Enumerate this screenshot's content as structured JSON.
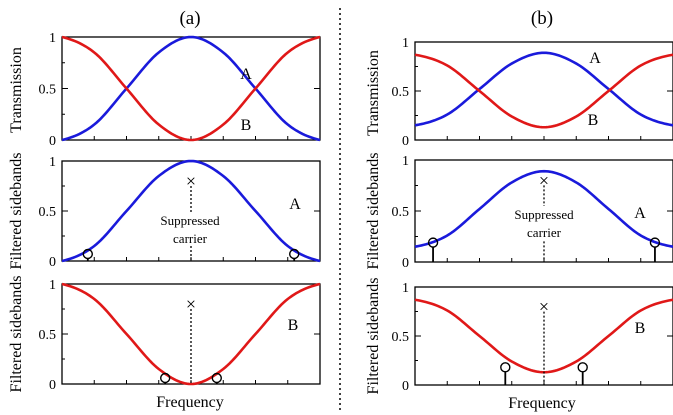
{
  "colors": {
    "blue": "#1a1adb",
    "red": "#e01818",
    "axis": "#000000",
    "marker": "#000000"
  },
  "panel_labels": [
    "(a)",
    "(b)"
  ],
  "layout_note": "Two columns of three stacked subplots, separated by a dotted vertical divider.",
  "chart_data": [
    {
      "id": "a-top",
      "type": "line",
      "panel": "(a)",
      "ylabel": "Transmission",
      "ylim": [
        0,
        1
      ],
      "yticks": [
        "1",
        "0.5",
        "0"
      ],
      "xlim": [
        0,
        1
      ],
      "x": [
        0,
        0.125,
        0.25,
        0.375,
        0.5,
        0.625,
        0.75,
        0.875,
        1
      ],
      "series": [
        {
          "name": "A",
          "color": "#1a1adb",
          "y": [
            0.0,
            0.15,
            0.5,
            0.85,
            1.0,
            0.85,
            0.5,
            0.15,
            0.0
          ]
        },
        {
          "name": "B",
          "color": "#e01818",
          "y": [
            1.0,
            0.85,
            0.5,
            0.15,
            0.0,
            0.15,
            0.5,
            0.85,
            1.0
          ]
        }
      ]
    },
    {
      "id": "a-mid",
      "type": "line",
      "panel": "(a)",
      "ylabel": "Filtered sidebands",
      "ylim": [
        0,
        1
      ],
      "yticks": [
        "1",
        "0.5",
        "0"
      ],
      "xlim": [
        0,
        1
      ],
      "x": [
        0,
        0.125,
        0.25,
        0.375,
        0.5,
        0.625,
        0.75,
        0.875,
        1
      ],
      "series": [
        {
          "name": "A",
          "color": "#1a1adb",
          "y": [
            0.0,
            0.15,
            0.5,
            0.85,
            1.0,
            0.85,
            0.5,
            0.15,
            0.0
          ]
        }
      ],
      "carrier": {
        "x": 0.5,
        "y": 0.8,
        "label": "Suppressed carrier"
      },
      "sidebands": [
        {
          "x": 0.1,
          "y": 0.07
        },
        {
          "x": 0.9,
          "y": 0.07
        }
      ]
    },
    {
      "id": "a-bot",
      "type": "line",
      "panel": "(a)",
      "ylabel": "Filtered sidebands",
      "ylim": [
        0,
        1
      ],
      "yticks": [
        "1",
        "0.5",
        "0"
      ],
      "xlim": [
        0,
        1
      ],
      "xlabel": "Frequency",
      "x": [
        0,
        0.125,
        0.25,
        0.375,
        0.5,
        0.625,
        0.75,
        0.875,
        1
      ],
      "series": [
        {
          "name": "B",
          "color": "#e01818",
          "y": [
            1.0,
            0.85,
            0.5,
            0.15,
            0.0,
            0.15,
            0.5,
            0.85,
            1.0
          ]
        }
      ],
      "carrier": {
        "x": 0.5,
        "y": 0.8
      },
      "sidebands": [
        {
          "x": 0.4,
          "y": 0.06
        },
        {
          "x": 0.6,
          "y": 0.06
        }
      ]
    },
    {
      "id": "b-top",
      "type": "line",
      "panel": "(b)",
      "ylabel": "Transmission",
      "ylim": [
        0,
        1
      ],
      "yticks": [
        "1",
        "0.5",
        "0"
      ],
      "xlim": [
        0,
        1
      ],
      "x": [
        0,
        0.125,
        0.25,
        0.375,
        0.5,
        0.625,
        0.75,
        0.875,
        1
      ],
      "series": [
        {
          "name": "A",
          "color": "#1a1adb",
          "y": [
            0.15,
            0.26,
            0.52,
            0.78,
            0.89,
            0.78,
            0.52,
            0.26,
            0.15
          ]
        },
        {
          "name": "B",
          "color": "#e01818",
          "y": [
            0.87,
            0.76,
            0.5,
            0.24,
            0.13,
            0.24,
            0.5,
            0.76,
            0.87
          ]
        }
      ]
    },
    {
      "id": "b-mid",
      "type": "line",
      "panel": "(b)",
      "ylabel": "Filtered sidebands",
      "ylim": [
        0,
        1
      ],
      "yticks": [
        "1",
        "0.5",
        "0"
      ],
      "xlim": [
        0,
        1
      ],
      "x": [
        0,
        0.125,
        0.25,
        0.375,
        0.5,
        0.625,
        0.75,
        0.875,
        1
      ],
      "series": [
        {
          "name": "A",
          "color": "#1a1adb",
          "y": [
            0.15,
            0.26,
            0.52,
            0.78,
            0.89,
            0.78,
            0.52,
            0.26,
            0.15
          ]
        }
      ],
      "carrier": {
        "x": 0.5,
        "y": 0.8,
        "label": "Suppressed carrier"
      },
      "sidebands": [
        {
          "x": 0.07,
          "y": 0.19
        },
        {
          "x": 0.93,
          "y": 0.19
        }
      ]
    },
    {
      "id": "b-bot",
      "type": "line",
      "panel": "(b)",
      "ylabel": "Filtered sidebands",
      "ylim": [
        0,
        1
      ],
      "yticks": [
        "1",
        "0.5",
        "0"
      ],
      "xlim": [
        0,
        1
      ],
      "xlabel": "Frequency",
      "x": [
        0,
        0.125,
        0.25,
        0.375,
        0.5,
        0.625,
        0.75,
        0.875,
        1
      ],
      "series": [
        {
          "name": "B",
          "color": "#e01818",
          "y": [
            0.87,
            0.76,
            0.5,
            0.24,
            0.13,
            0.24,
            0.5,
            0.76,
            0.87
          ]
        }
      ],
      "carrier": {
        "x": 0.5,
        "y": 0.8
      },
      "sidebands": [
        {
          "x": 0.35,
          "y": 0.18
        },
        {
          "x": 0.65,
          "y": 0.18
        }
      ]
    }
  ]
}
